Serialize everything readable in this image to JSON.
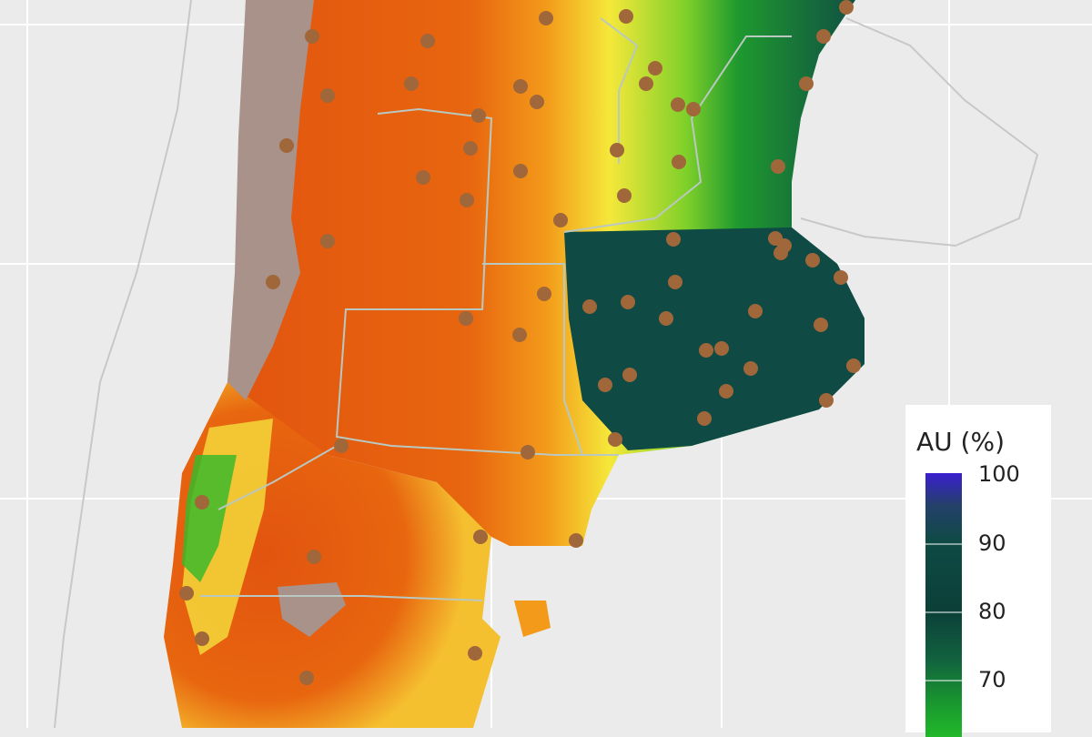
{
  "legend": {
    "title": "AU (%)",
    "ticks": [
      "100",
      "90",
      "80",
      "70"
    ],
    "colors": {
      "100": "#3a1fd0",
      "90": "#0f4a45",
      "80": "#0b3f38",
      "70": "#1a9a2e",
      "low": "#e2540f",
      "mid": "#f5e83a"
    }
  },
  "map": {
    "background": "#ebebeb",
    "station_color": "#a0673a",
    "region_colors": {
      "very_dry": "#e2540f",
      "dry": "#f39a1a",
      "medium": "#f5e83a",
      "wet": "#3cb82a",
      "very_wet": "#0f4a45",
      "no_data": "#a8928a"
    }
  }
}
